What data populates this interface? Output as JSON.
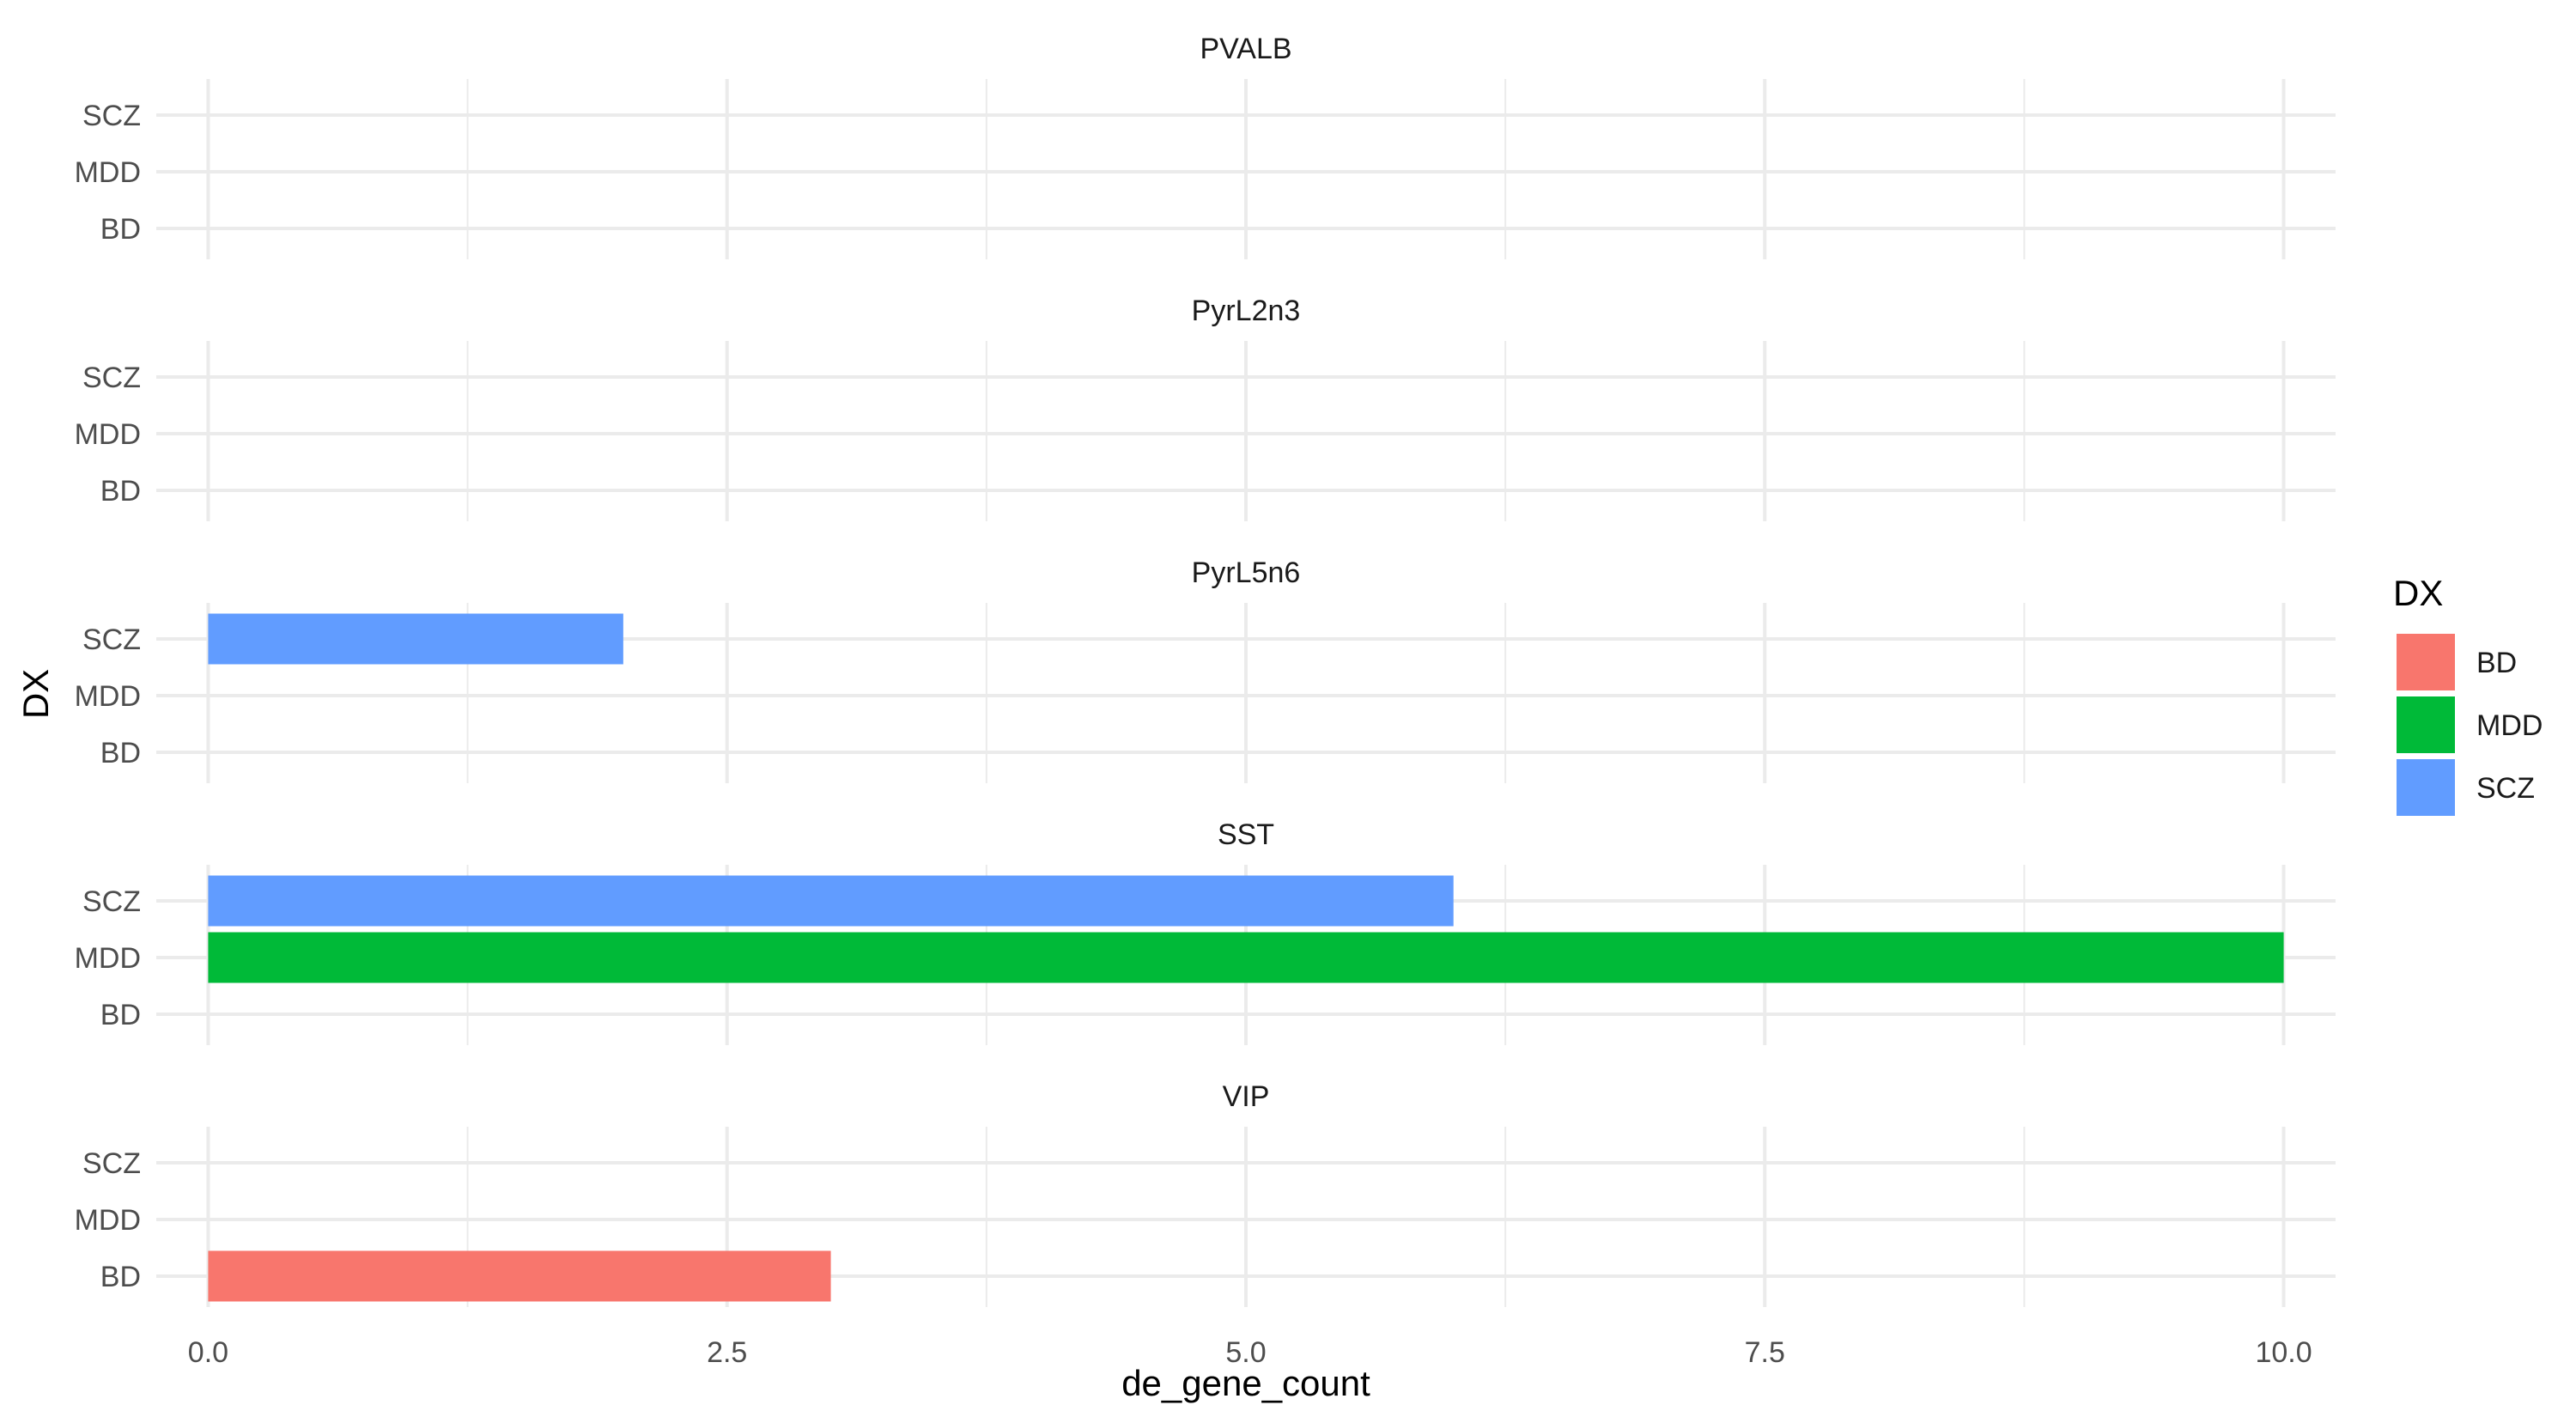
{
  "chart_data": {
    "type": "bar",
    "orientation": "horizontal",
    "faceted": true,
    "xlabel": "de_gene_count",
    "ylabel": "DX",
    "xlim": [
      -0.25,
      10.25
    ],
    "x_ticks": [
      0.0,
      2.5,
      5.0,
      7.5,
      10.0
    ],
    "x_tick_labels": [
      "0.0",
      "2.5",
      "5.0",
      "7.5",
      "10.0"
    ],
    "categories": [
      "BD",
      "MDD",
      "SCZ"
    ],
    "grid": true,
    "legend": {
      "title": "DX",
      "placement": "right",
      "entries": [
        {
          "label": "BD",
          "color": "#F8766D"
        },
        {
          "label": "MDD",
          "color": "#00BA38"
        },
        {
          "label": "SCZ",
          "color": "#619CFF"
        }
      ]
    },
    "facets": [
      {
        "title": "PVALB",
        "values": {
          "BD": 0,
          "MDD": 0,
          "SCZ": 0
        }
      },
      {
        "title": "PyrL2n3",
        "values": {
          "BD": 0,
          "MDD": 0,
          "SCZ": 0
        }
      },
      {
        "title": "PyrL5n6",
        "values": {
          "BD": 0,
          "MDD": 0,
          "SCZ": 2
        }
      },
      {
        "title": "SST",
        "values": {
          "BD": 0,
          "MDD": 10,
          "SCZ": 6
        }
      },
      {
        "title": "VIP",
        "values": {
          "BD": 3,
          "MDD": 0,
          "SCZ": 0
        }
      }
    ]
  }
}
